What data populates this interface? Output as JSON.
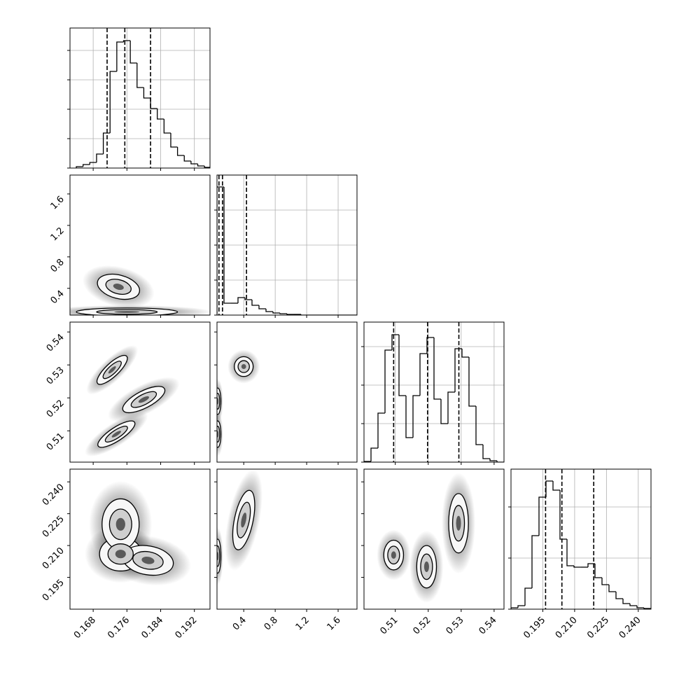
{
  "chart_data": {
    "type": "corner",
    "grid": true,
    "parameters": [
      {
        "lim": [
          0.1625,
          0.1957
        ],
        "ticks": [
          0.168,
          0.176,
          0.184,
          0.192
        ],
        "bins": [
          0.164,
          0.1656,
          0.1672,
          0.1688,
          0.1704,
          0.172,
          0.1736,
          0.1752,
          0.1768,
          0.1784,
          0.18,
          0.1816,
          0.1832,
          0.1848,
          0.1864,
          0.188,
          0.1896,
          0.1912,
          0.1928,
          0.1944,
          0.196
        ],
        "counts": [
          2,
          5,
          8,
          20,
          50,
          138,
          180,
          182,
          150,
          115,
          100,
          85,
          70,
          50,
          30,
          18,
          10,
          6,
          3,
          1
        ],
        "quantiles": [
          0.1713,
          0.1755,
          0.1816
        ],
        "hist_ylim": [
          0,
          200
        ],
        "hist_yticks": [
          0,
          42,
          84,
          126,
          168
        ]
      },
      {
        "lim": [
          0.06,
          1.84
        ],
        "ticks": [
          0.4,
          0.8,
          1.2,
          1.6
        ],
        "bins": [
          0.06,
          0.149,
          0.238,
          0.327,
          0.416,
          0.505,
          0.594,
          0.683,
          0.772,
          0.861,
          0.95,
          1.039,
          1.128,
          1.217,
          1.306,
          1.395,
          1.484,
          1.573,
          1.662,
          1.751,
          1.84
        ],
        "counts": [
          183,
          17,
          17,
          25,
          22,
          14,
          9,
          5,
          3,
          2,
          1,
          1,
          0,
          0,
          0,
          0,
          0,
          0,
          0,
          0
        ],
        "quantiles": [
          0.085,
          0.13,
          0.435
        ],
        "hist_ylim": [
          0,
          200
        ],
        "hist_yticks": [
          0,
          50,
          100,
          150
        ]
      },
      {
        "lim": [
          0.5005,
          0.543
        ],
        "ticks": [
          0.51,
          0.52,
          0.53,
          0.54
        ],
        "bins": [
          0.5005,
          0.502625,
          0.50475,
          0.506875,
          0.509,
          0.511125,
          0.51325,
          0.515375,
          0.5175,
          0.519625,
          0.52175,
          0.523875,
          0.526,
          0.528125,
          0.53025,
          0.532375,
          0.5345,
          0.536625,
          0.53875,
          0.540875,
          0.543
        ],
        "counts": [
          1,
          20,
          70,
          160,
          182,
          95,
          35,
          95,
          155,
          178,
          90,
          55,
          100,
          162,
          150,
          80,
          25,
          5,
          2,
          0
        ],
        "quantiles": [
          0.5095,
          0.5198,
          0.5293
        ],
        "hist_ylim": [
          0,
          200
        ],
        "hist_yticks": [
          0,
          55,
          110,
          165
        ]
      },
      {
        "lim": [
          0.18,
          0.246
        ],
        "ticks": [
          0.195,
          {
            "value": 0.21,
            "label": "0.210"
          },
          0.225,
          {
            "value": 0.24,
            "label": "0.240"
          }
        ],
        "bins": [
          0.18,
          0.1833,
          0.1866,
          0.1899,
          0.1932,
          0.1965,
          0.1998,
          0.2031,
          0.2064,
          0.2097,
          0.213,
          0.2163,
          0.2196,
          0.2229,
          0.2262,
          0.2295,
          0.2328,
          0.2361,
          0.2394,
          0.2427,
          0.246
        ],
        "counts": [
          2,
          5,
          30,
          105,
          160,
          183,
          170,
          100,
          62,
          60,
          60,
          65,
          45,
          35,
          25,
          15,
          8,
          5,
          2,
          1
        ],
        "quantiles": [
          0.1963,
          0.204,
          0.219
        ],
        "hist_ylim": [
          0,
          200
        ],
        "hist_yticks": [
          0,
          73,
          146
        ]
      }
    ],
    "panels": [
      {
        "x_param": 0,
        "y_param": 1,
        "clusters": [
          {
            "x": 0.174,
            "y": 0.42,
            "sx": 0.0025,
            "sy": 0.08,
            "rho": -0.3
          },
          {
            "x": 0.176,
            "y": 0.1,
            "sx": 0.006,
            "sy": 0.025,
            "rho": 0
          }
        ]
      },
      {
        "x_param": 0,
        "y_param": 2,
        "clusters": [
          {
            "x": 0.1725,
            "y": 0.5285,
            "sx": 0.0018,
            "sy": 0.0022,
            "rho": 0.8
          },
          {
            "x": 0.18,
            "y": 0.5195,
            "sx": 0.0025,
            "sy": 0.002,
            "rho": 0.7
          },
          {
            "x": 0.1735,
            "y": 0.509,
            "sx": 0.0022,
            "sy": 0.002,
            "rho": 0.8
          }
        ]
      },
      {
        "x_param": 1,
        "y_param": 2,
        "clusters": [
          {
            "x": 0.4,
            "y": 0.5295,
            "sx": 0.06,
            "sy": 0.0015,
            "rho": 0
          },
          {
            "x": 0.07,
            "y": 0.519,
            "sx": 0.02,
            "sy": 0.002,
            "rho": 0
          },
          {
            "x": 0.07,
            "y": 0.509,
            "sx": 0.02,
            "sy": 0.002,
            "rho": 0
          }
        ]
      },
      {
        "x_param": 0,
        "y_param": 3,
        "clusters": [
          {
            "x": 0.1745,
            "y": 0.206,
            "sx": 0.0025,
            "sy": 0.004,
            "rho": 0
          },
          {
            "x": 0.1745,
            "y": 0.22,
            "sx": 0.0022,
            "sy": 0.006,
            "rho": 0
          },
          {
            "x": 0.181,
            "y": 0.203,
            "sx": 0.003,
            "sy": 0.0035,
            "rho": -0.2
          }
        ]
      },
      {
        "x_param": 1,
        "y_param": 3,
        "clusters": [
          {
            "x": 0.07,
            "y": 0.205,
            "sx": 0.02,
            "sy": 0.004,
            "rho": 0
          },
          {
            "x": 0.4,
            "y": 0.222,
            "sx": 0.07,
            "sy": 0.007,
            "rho": 0.5
          }
        ]
      },
      {
        "x_param": 2,
        "y_param": 3,
        "clusters": [
          {
            "x": 0.5095,
            "y": 0.2055,
            "sx": 0.0015,
            "sy": 0.0035,
            "rho": 0
          },
          {
            "x": 0.5195,
            "y": 0.2,
            "sx": 0.0015,
            "sy": 0.005,
            "rho": 0
          },
          {
            "x": 0.5292,
            "y": 0.2205,
            "sx": 0.0015,
            "sy": 0.007,
            "rho": 0
          }
        ]
      }
    ]
  }
}
